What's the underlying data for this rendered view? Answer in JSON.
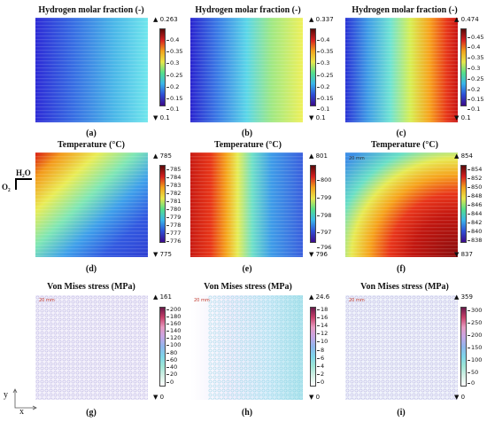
{
  "row1": {
    "title": "Hydrogen molar fraction (-)",
    "panels": [
      {
        "caption": "(a)",
        "max": "▲ 0.263",
        "min": "▼ 0.1",
        "ticks": [
          "0.4",
          "0.35",
          "0.3",
          "0.25",
          "0.2",
          "0.15",
          "0.1"
        ]
      },
      {
        "caption": "(b)",
        "max": "▲ 0.337",
        "min": "▼ 0.1",
        "ticks": [
          "0.4",
          "0.35",
          "0.3",
          "0.25",
          "0.2",
          "0.15",
          "0.1"
        ]
      },
      {
        "caption": "(c)",
        "max": "▲ 0.474",
        "min": "▼ 0.1",
        "ticks": [
          "0.45",
          "0.4",
          "0.35",
          "0.3",
          "0.25",
          "0.2",
          "0.15",
          "0.1"
        ]
      }
    ]
  },
  "row2": {
    "title": "Temperature (°C)",
    "panels": [
      {
        "caption": "(d)",
        "max": "▲ 785",
        "min": "▼ 775",
        "ticks": [
          "785",
          "784",
          "783",
          "782",
          "781",
          "780",
          "779",
          "778",
          "777",
          "776"
        ]
      },
      {
        "caption": "(e)",
        "max": "▲ 801",
        "min": "▼ 796",
        "ticks": [
          "800",
          "799",
          "798",
          "797",
          "796"
        ]
      },
      {
        "caption": "(f)",
        "max": "▲ 854",
        "min": "▼ 837",
        "ticks": [
          "854",
          "852",
          "850",
          "848",
          "846",
          "844",
          "842",
          "840",
          "838"
        ]
      }
    ]
  },
  "row3": {
    "title": "Von Mises stress (MPa)",
    "panels": [
      {
        "caption": "(g)",
        "max": "▲ 161",
        "min": "▼ 0",
        "ticks": [
          "200",
          "180",
          "160",
          "140",
          "120",
          "100",
          "80",
          "60",
          "40",
          "20",
          "0"
        ]
      },
      {
        "caption": "(h)",
        "max": "▲ 24.6",
        "min": "▼ 0",
        "ticks": [
          "18",
          "16",
          "14",
          "12",
          "10",
          "8",
          "6",
          "4",
          "2",
          "0"
        ]
      },
      {
        "caption": "(i)",
        "max": "▲ 359",
        "min": "▼ 0",
        "ticks": [
          "300",
          "250",
          "200",
          "150",
          "100",
          "50",
          "0"
        ]
      }
    ]
  },
  "flow": {
    "h2o": "H₂O",
    "o2": "O₂"
  },
  "scale_label": "20 mm",
  "axes": {
    "y": "y",
    "x": "x"
  }
}
